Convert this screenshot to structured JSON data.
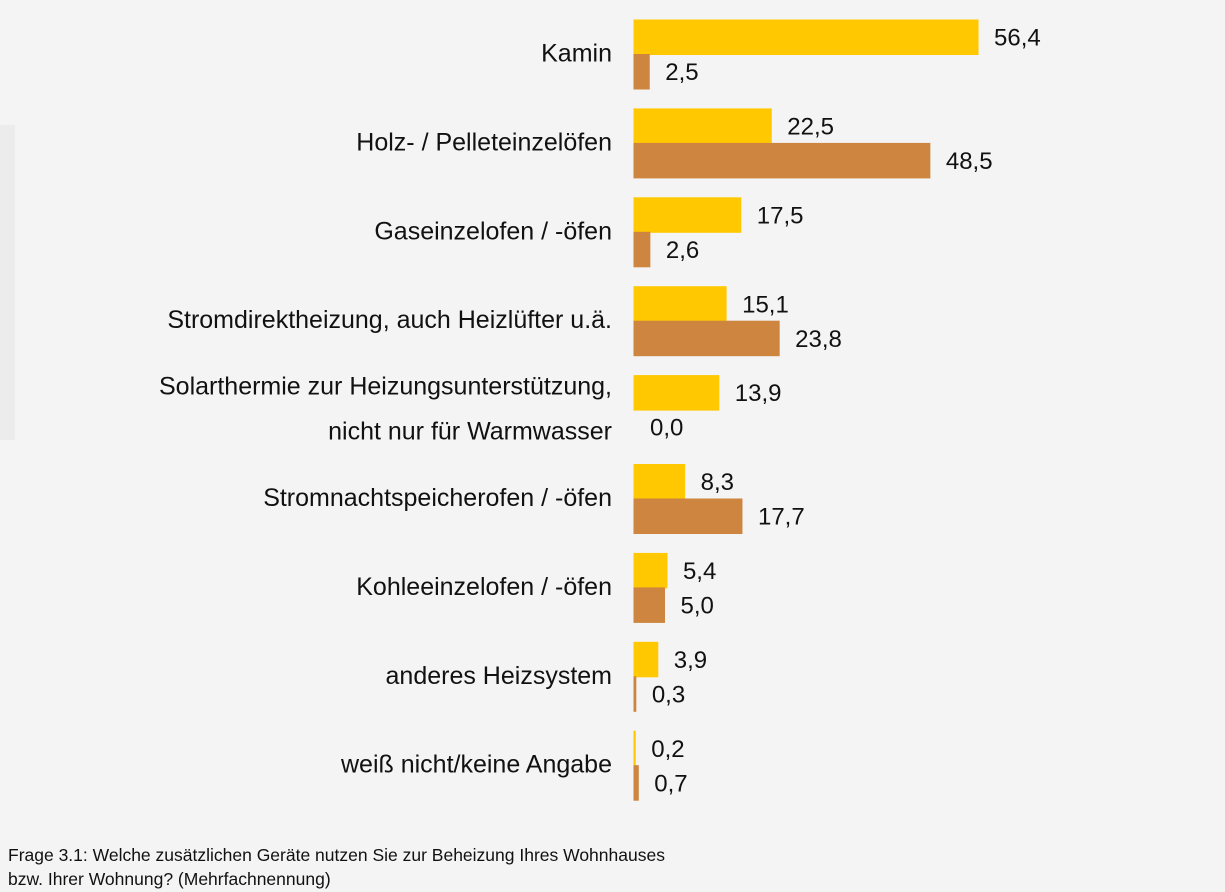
{
  "chart_data": {
    "type": "hbar",
    "categories": [
      "Kamin",
      "Holz- / Pelleteinzelöfen",
      "Gaseinzelofen / -öfen",
      "Stromdirektheizung, auch Heizlüfter u.ä.",
      "Solarthermie zur Heizungsunterstützung,\nnicht nur für Warmwasser",
      "Stromnachtspeicherofen / -öfen",
      "Kohleeinzelofen / -öfen",
      "anderes Heizsystem",
      "weiß nicht/keine Angabe"
    ],
    "series": [
      {
        "color": "#FFC800",
        "values": [
          56.4,
          22.5,
          17.5,
          15.1,
          13.9,
          8.3,
          5.4,
          3.9,
          0.2
        ],
        "value_labels": [
          "56,4",
          "22,5",
          "17,5",
          "15,1",
          "13,9",
          "8,3",
          "5,4",
          "3,9",
          "0,2"
        ]
      },
      {
        "color": "#CD8540",
        "values": [
          2.5,
          48.5,
          2.6,
          23.8,
          0.0,
          17.7,
          5.0,
          0.3,
          0.7
        ],
        "value_labels": [
          "2,5",
          "48,5",
          "2,6",
          "23,8",
          "0,0",
          "17,7",
          "5,0",
          "0,3",
          "0,7"
        ]
      }
    ],
    "note": "Frage 3.1: Welche zusätzlichen Geräte nutzen Sie zur Beheizung Ihres Wohnhauses bzw. Ihrer Wohnung? (Mehrfachnennung)"
  }
}
